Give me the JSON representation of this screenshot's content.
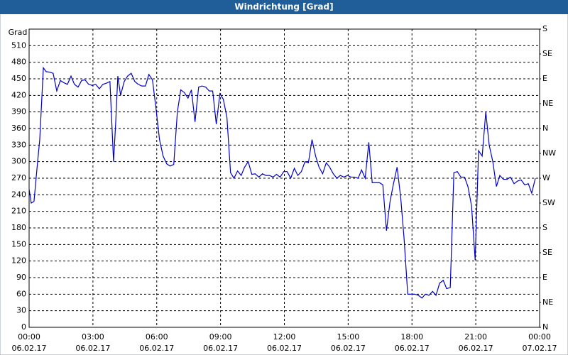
{
  "chart_data": {
    "type": "line",
    "title": "Windrichtung [Grad]",
    "y_label": "Grad",
    "xlim": [
      0,
      24
    ],
    "xticks": [
      {
        "value": 0,
        "label": "00:00",
        "date": "06.02.17"
      },
      {
        "value": 3,
        "label": "03:00",
        "date": "06.02.17"
      },
      {
        "value": 6,
        "label": "06:00",
        "date": "06.02.17"
      },
      {
        "value": 9,
        "label": "09:00",
        "date": "06.02.17"
      },
      {
        "value": 12,
        "label": "12:00",
        "date": "06.02.17"
      },
      {
        "value": 15,
        "label": "15:00",
        "date": "06.02.17"
      },
      {
        "value": 18,
        "label": "18:00",
        "date": "06.02.17"
      },
      {
        "value": 21,
        "label": "21:00",
        "date": "06.02.17"
      },
      {
        "value": 24,
        "label": "00:00",
        "date": "07.02.17"
      }
    ],
    "ylim": [
      0,
      540
    ],
    "yticks": [
      0,
      30,
      60,
      90,
      120,
      150,
      180,
      210,
      240,
      270,
      300,
      330,
      360,
      390,
      420,
      450,
      480,
      510
    ],
    "y2lim": [
      0,
      540
    ],
    "y2ticks": [
      {
        "value": 0,
        "label": "N"
      },
      {
        "value": 45,
        "label": "NE"
      },
      {
        "value": 90,
        "label": "E"
      },
      {
        "value": 135,
        "label": "SE"
      },
      {
        "value": 180,
        "label": "S"
      },
      {
        "value": 225,
        "label": "SW"
      },
      {
        "value": 270,
        "label": "W"
      },
      {
        "value": 315,
        "label": "NW"
      },
      {
        "value": 360,
        "label": "N"
      },
      {
        "value": 405,
        "label": "NE"
      },
      {
        "value": 450,
        "label": "E"
      },
      {
        "value": 495,
        "label": "SE"
      },
      {
        "value": 540,
        "label": "S"
      }
    ],
    "grid": true,
    "color": "#0000cc",
    "x": [
      0,
      0.1,
      0.23,
      0.4,
      0.5,
      0.67,
      0.8,
      0.97,
      1.13,
      1.3,
      1.47,
      1.63,
      1.8,
      1.97,
      2.13,
      2.3,
      2.47,
      2.63,
      2.8,
      2.97,
      3.13,
      3.3,
      3.47,
      3.63,
      3.8,
      3.97,
      4.07,
      4.17,
      4.3,
      4.47,
      4.63,
      4.8,
      4.97,
      5.13,
      5.3,
      5.47,
      5.63,
      5.8,
      5.97,
      6.13,
      6.3,
      6.47,
      6.63,
      6.8,
      6.97,
      7.13,
      7.3,
      7.47,
      7.63,
      7.8,
      7.97,
      8.13,
      8.3,
      8.47,
      8.63,
      8.8,
      8.97,
      9.13,
      9.3,
      9.47,
      9.63,
      9.8,
      9.97,
      10.13,
      10.3,
      10.47,
      10.63,
      10.8,
      10.97,
      11.13,
      11.3,
      11.47,
      11.63,
      11.8,
      11.97,
      12.13,
      12.3,
      12.47,
      12.63,
      12.8,
      12.97,
      13.13,
      13.3,
      13.47,
      13.63,
      13.8,
      13.97,
      14.13,
      14.3,
      14.47,
      14.63,
      14.8,
      14.97,
      15.13,
      15.3,
      15.47,
      15.63,
      15.8,
      15.97,
      16.13,
      16.3,
      16.47,
      16.63,
      16.8,
      16.97,
      17.13,
      17.3,
      17.47,
      17.63,
      17.8,
      17.97,
      18.13,
      18.3,
      18.47,
      18.63,
      18.8,
      18.97,
      19.13,
      19.3,
      19.47,
      19.63,
      19.8,
      19.97,
      20.13,
      20.3,
      20.47,
      20.63,
      20.8,
      20.97,
      21.13,
      21.3,
      21.47,
      21.63,
      21.8,
      21.97,
      22.13,
      22.3,
      22.47,
      22.63,
      22.8,
      22.97,
      23.13,
      23.3,
      23.47,
      23.63,
      23.8
    ],
    "values": [
      250,
      225,
      228,
      300,
      340,
      470,
      463,
      462,
      460,
      428,
      447,
      443,
      440,
      455,
      440,
      435,
      447,
      448,
      440,
      438,
      440,
      432,
      440,
      442,
      445,
      300,
      370,
      455,
      420,
      445,
      455,
      460,
      445,
      440,
      437,
      437,
      458,
      448,
      395,
      340,
      310,
      296,
      292,
      295,
      390,
      430,
      425,
      415,
      430,
      372,
      435,
      437,
      435,
      428,
      428,
      368,
      423,
      413,
      380,
      280,
      270,
      283,
      275,
      290,
      300,
      277,
      278,
      272,
      278,
      275,
      275,
      272,
      277,
      272,
      282,
      282,
      270,
      288,
      275,
      282,
      300,
      298,
      340,
      310,
      290,
      278,
      298,
      290,
      278,
      270,
      275,
      272,
      275,
      272,
      272,
      270,
      285,
      270,
      335,
      262,
      262,
      262,
      258,
      175,
      228,
      260,
      290,
      235,
      160,
      60,
      60,
      60,
      58,
      53,
      60,
      58,
      65,
      58,
      80,
      85,
      70,
      72,
      280,
      282,
      272,
      272,
      255,
      220,
      122,
      320,
      310,
      390,
      330,
      300,
      255,
      275,
      268,
      268,
      272,
      260,
      265,
      267,
      258,
      260,
      243,
      270
    ]
  }
}
